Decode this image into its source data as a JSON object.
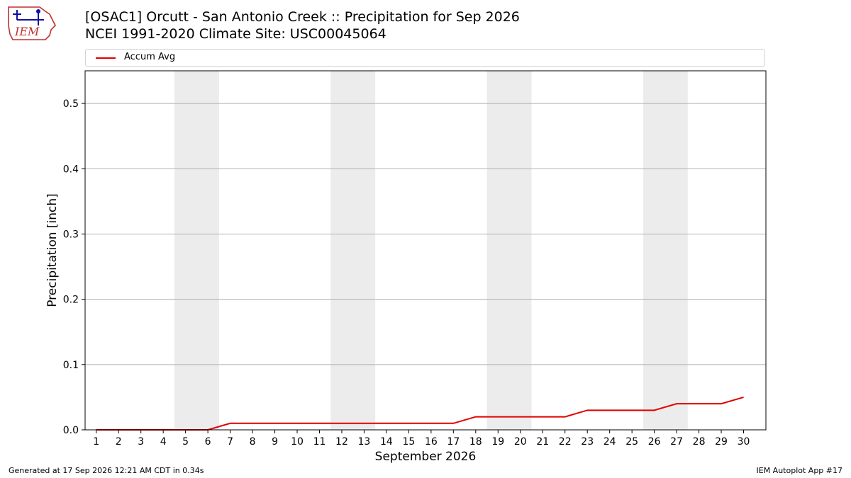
{
  "header": {
    "title_line1": "[OSAC1] Orcutt - San Antonio Creek :: Precipitation for Sep 2026",
    "title_line2": "NCEI 1991-2020 Climate Site: USC00045064"
  },
  "logo": {
    "text": "IEM",
    "icon": "iem-logo-icon"
  },
  "footer": {
    "left": "Generated at 17 Sep 2026 12:21 AM CDT in 0.34s",
    "right": "IEM Autoplot App #17"
  },
  "colors": {
    "series": "#e00000",
    "weekend": "#ececec",
    "grid": "#b0b0b0"
  },
  "chart_data": {
    "type": "line",
    "xlabel": "September 2026",
    "ylabel": "Precipitation [inch]",
    "xlim": [
      0.5,
      31
    ],
    "ylim": [
      0,
      0.55
    ],
    "yticks": [
      0.0,
      0.1,
      0.2,
      0.3,
      0.4,
      0.5
    ],
    "ytick_labels": [
      "0.0",
      "0.1",
      "0.2",
      "0.3",
      "0.4",
      "0.5"
    ],
    "x": [
      1,
      2,
      3,
      4,
      5,
      6,
      7,
      8,
      9,
      10,
      11,
      12,
      13,
      14,
      15,
      16,
      17,
      18,
      19,
      20,
      21,
      22,
      23,
      24,
      25,
      26,
      27,
      28,
      29,
      30
    ],
    "xtick_labels": [
      "1",
      "2",
      "3",
      "4",
      "5",
      "6",
      "7",
      "8",
      "9",
      "10",
      "11",
      "12",
      "13",
      "14",
      "15",
      "16",
      "17",
      "18",
      "19",
      "20",
      "21",
      "22",
      "23",
      "24",
      "25",
      "26",
      "27",
      "28",
      "29",
      "30"
    ],
    "weekend_spans": [
      [
        5,
        6
      ],
      [
        12,
        13
      ],
      [
        19,
        20
      ],
      [
        26,
        27
      ]
    ],
    "grid": "horizontal",
    "legend_position": "top",
    "series": [
      {
        "name": "Accum Avg",
        "color": "#e00000",
        "values": [
          0,
          0,
          0,
          0,
          0,
          0,
          0.01,
          0.01,
          0.01,
          0.01,
          0.01,
          0.01,
          0.01,
          0.01,
          0.01,
          0.01,
          0.01,
          0.02,
          0.02,
          0.02,
          0.02,
          0.02,
          0.03,
          0.03,
          0.03,
          0.03,
          0.04,
          0.04,
          0.04,
          0.05
        ]
      }
    ]
  }
}
